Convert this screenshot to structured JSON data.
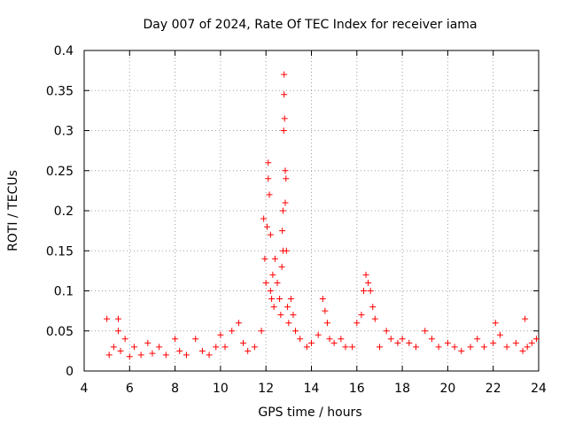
{
  "chart_data": {
    "type": "scatter",
    "title": "Day 007 of 2024, Rate Of TEC Index for receiver iama",
    "xlabel": "GPS time / hours",
    "ylabel": "ROTI / TECUs",
    "xlim": [
      4,
      24
    ],
    "ylim": [
      0,
      0.4
    ],
    "x_ticks": [
      4,
      6,
      8,
      10,
      12,
      14,
      16,
      18,
      20,
      22,
      24
    ],
    "x_tick_labels": [
      "4",
      "6",
      "8",
      "10",
      "12",
      "14",
      "16",
      "18",
      "20",
      "22",
      "24"
    ],
    "y_ticks": [
      0,
      0.05,
      0.1,
      0.15,
      0.2,
      0.25,
      0.3,
      0.35,
      0.4
    ],
    "y_tick_labels": [
      "0",
      "0.05",
      "0.1",
      "0.15",
      "0.2",
      "0.25",
      "0.3",
      "0.35",
      "0.4"
    ],
    "grid": true,
    "marker": "+",
    "series": [
      {
        "name": "ROTI",
        "color": "#ff0000",
        "x": [
          5.0,
          5.1,
          5.3,
          5.5,
          5.5,
          5.6,
          5.8,
          6.0,
          6.2,
          6.5,
          6.8,
          7.0,
          7.3,
          7.6,
          8.0,
          8.2,
          8.5,
          8.9,
          9.2,
          9.5,
          9.8,
          10.0,
          10.2,
          10.5,
          10.8,
          11.0,
          11.2,
          11.5,
          11.8,
          11.9,
          11.95,
          12.0,
          12.05,
          12.1,
          12.1,
          12.15,
          12.2,
          12.2,
          12.25,
          12.3,
          12.35,
          12.4,
          12.5,
          12.6,
          12.65,
          12.7,
          12.72,
          12.75,
          12.75,
          12.78,
          12.8,
          12.8,
          12.82,
          12.85,
          12.85,
          12.88,
          12.9,
          12.95,
          13.0,
          13.1,
          13.2,
          13.3,
          13.5,
          13.8,
          14.0,
          14.3,
          14.5,
          14.6,
          14.7,
          14.8,
          15.0,
          15.3,
          15.5,
          15.8,
          16.0,
          16.2,
          16.3,
          16.4,
          16.5,
          16.6,
          16.7,
          16.8,
          17.0,
          17.3,
          17.5,
          17.8,
          18.0,
          18.3,
          18.6,
          19.0,
          19.3,
          19.6,
          20.0,
          20.3,
          20.6,
          21.0,
          21.3,
          21.6,
          22.0,
          22.1,
          22.3,
          22.6,
          23.0,
          23.3,
          23.4,
          23.5,
          23.7,
          23.9
        ],
        "y": [
          0.065,
          0.02,
          0.03,
          0.065,
          0.05,
          0.025,
          0.04,
          0.018,
          0.03,
          0.02,
          0.035,
          0.022,
          0.03,
          0.02,
          0.04,
          0.025,
          0.02,
          0.04,
          0.025,
          0.02,
          0.03,
          0.045,
          0.03,
          0.05,
          0.06,
          0.035,
          0.025,
          0.03,
          0.05,
          0.19,
          0.14,
          0.11,
          0.18,
          0.26,
          0.24,
          0.22,
          0.17,
          0.1,
          0.09,
          0.12,
          0.08,
          0.14,
          0.11,
          0.09,
          0.07,
          0.13,
          0.175,
          0.15,
          0.2,
          0.3,
          0.37,
          0.345,
          0.315,
          0.25,
          0.21,
          0.24,
          0.15,
          0.08,
          0.06,
          0.09,
          0.07,
          0.05,
          0.04,
          0.03,
          0.035,
          0.045,
          0.09,
          0.075,
          0.06,
          0.04,
          0.035,
          0.04,
          0.03,
          0.03,
          0.06,
          0.07,
          0.1,
          0.12,
          0.11,
          0.1,
          0.08,
          0.065,
          0.03,
          0.05,
          0.04,
          0.035,
          0.04,
          0.035,
          0.03,
          0.05,
          0.04,
          0.03,
          0.035,
          0.03,
          0.025,
          0.03,
          0.04,
          0.03,
          0.035,
          0.06,
          0.045,
          0.03,
          0.035,
          0.025,
          0.065,
          0.03,
          0.035,
          0.04
        ]
      }
    ]
  }
}
